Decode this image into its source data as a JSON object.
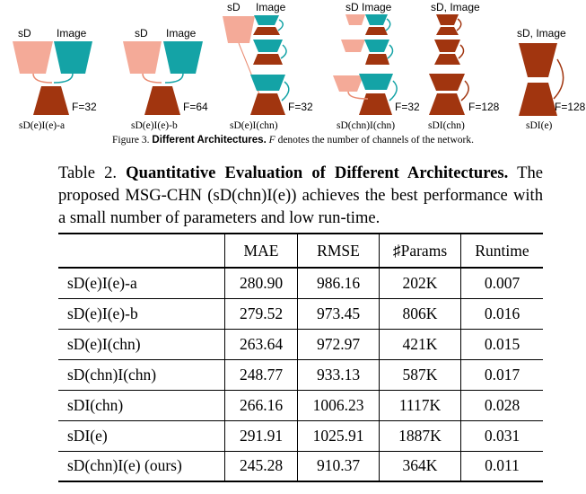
{
  "figure": {
    "colors": {
      "depth": "#f4aa98",
      "image": "#14a3a6",
      "decoder": "#a1350f",
      "link": "#e98a70",
      "teal_link": "#14a3a6",
      "dark_link": "#a1350f"
    },
    "panels": [
      {
        "label": "sD(e)I(e)-a",
        "input_labels": [
          "sD",
          "Image"
        ],
        "f_label": "F=32"
      },
      {
        "label": "sD(e)I(e)-b",
        "input_labels": [
          "sD",
          "Image"
        ],
        "f_label": "F=64"
      },
      {
        "label": "sD(e)I(chn)",
        "input_labels": [
          "sD",
          "Image"
        ],
        "f_label": "F=32"
      },
      {
        "label": "sD(chn)I(chn)",
        "input_labels": [
          "sD",
          "Image"
        ],
        "f_label": "F=32"
      },
      {
        "label": "sDI(chn)",
        "input_labels": [
          "sD, Image"
        ],
        "f_label": "F=128"
      },
      {
        "label": "sDI(e)",
        "input_labels": [
          "sD, Image"
        ],
        "f_label": "F=128"
      }
    ],
    "caption": {
      "prefix": "Figure 3.",
      "bold": "Different Architectures.",
      "symbol": "F",
      "rest": "denotes the number of channels of the network."
    }
  },
  "table": {
    "caption": {
      "prefix": "Table 2.",
      "bold": "Quantitative Evaluation of Different Architectures.",
      "rest": "The proposed MSG-CHN (sD(chn)I(e)) achieves the best performance with a small number of parameters and low run-time."
    },
    "headers": [
      "",
      "MAE",
      "RMSE",
      "♯Params",
      "Runtime"
    ],
    "rows": [
      [
        "sD(e)I(e)-a",
        "280.90",
        "986.16",
        "202K",
        "0.007"
      ],
      [
        "sD(e)I(e)-b",
        "279.52",
        "973.45",
        "806K",
        "0.016"
      ],
      [
        "sD(e)I(chn)",
        "263.64",
        "972.97",
        "421K",
        "0.015"
      ],
      [
        "sD(chn)I(chn)",
        "248.77",
        "933.13",
        "587K",
        "0.017"
      ],
      [
        "sDI(chn)",
        "266.16",
        "1006.23",
        "1117K",
        "0.028"
      ],
      [
        "sDI(e)",
        "291.91",
        "1025.91",
        "1887K",
        "0.031"
      ],
      [
        "sD(chn)I(e) (ours)",
        "245.28",
        "910.37",
        "364K",
        "0.011"
      ]
    ]
  }
}
